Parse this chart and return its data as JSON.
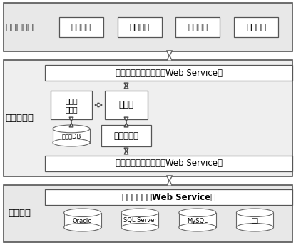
{
  "bg_color": "#ffffff",
  "layer_bg_top": "#e8e8e8",
  "layer_bg_mid": "#efefef",
  "layer_bg_bot": "#e8e8e8",
  "top_layer_label": "统一应用层",
  "top_boxes": [
    "数据添加",
    "数据删除",
    "数据更新",
    "数据查询"
  ],
  "mid_layer_label": "数据融合层",
  "web_service_top": "应用层访问统一接口（Web Service）",
  "meta_manager": "元数据\n管理器",
  "mediator": "中介器",
  "meta_db": "元数据DB",
  "wrapper": "综合包装器",
  "web_service_bot": "异构数据库统一接口（Web Service）",
  "bot_layer_label": "数据库层",
  "db_proxy": "数据库代理（Web Service）",
  "db_boxes": [
    "Oracle",
    "SQL Server",
    "MySQL",
    "其他"
  ],
  "font_main": 8.5,
  "font_small": 7.0,
  "font_label": 9.5,
  "font_db": 6.0
}
